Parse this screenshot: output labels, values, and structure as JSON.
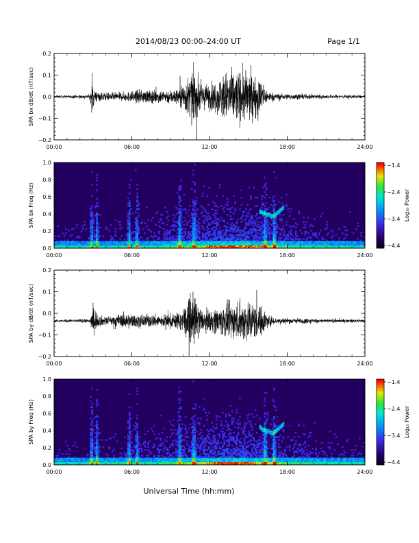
{
  "header": {
    "title": "2014/08/23  00:00–24:00 UT",
    "page": "Page 1/1"
  },
  "xlabel": "Universal Time (hh:mm)",
  "chart_data": [
    {
      "type": "line",
      "ylabel": "SPA bx dB/dt (nT/sec)",
      "xlim": [
        0,
        24
      ],
      "ylim": [
        -0.2,
        0.2
      ],
      "yticks": [
        "0.2",
        "0.1",
        "0.0",
        "−0.1",
        "−0.2"
      ],
      "xticks": [
        "00:00",
        "06:00",
        "12:00",
        "18:00",
        "24:00"
      ],
      "envelope": {
        "hours": [
          0,
          2.8,
          2.95,
          3.1,
          3.3,
          4,
          5.5,
          6.5,
          8,
          9.5,
          10.8,
          11.5,
          12.5,
          13.3,
          14,
          15,
          16,
          16.5,
          17,
          19,
          21,
          24
        ],
        "amplitude": [
          0.01,
          0.015,
          0.15,
          0.08,
          0.04,
          0.03,
          0.035,
          0.05,
          0.05,
          0.06,
          0.2,
          0.09,
          0.12,
          0.2,
          0.2,
          0.2,
          0.13,
          0.04,
          0.025,
          0.02,
          0.015,
          0.012
        ]
      }
    },
    {
      "type": "heatmap",
      "ylabel": "SPA bx Freq (Hz)",
      "xlim": [
        0,
        24
      ],
      "ylim": [
        0,
        1.0
      ],
      "yticks": [
        "1.0",
        "0.8",
        "0.6",
        "0.4",
        "0.2",
        "0.0"
      ],
      "xticks": [
        "00:00",
        "06:00",
        "12:00",
        "18:00",
        "24:00"
      ],
      "colorbar": {
        "label": "Log₁₀ Power",
        "ticks": [
          "−1.4",
          "−2.4",
          "−3.4",
          "−4.4"
        ],
        "range": [
          -4.4,
          -1.4
        ]
      },
      "bright_times_hours": [
        2.9,
        3.3,
        5.8,
        6.4,
        9.7,
        10.8,
        16.3,
        17.0
      ],
      "emission_track": {
        "hours": [
          15.8,
          16.3,
          16.9,
          17.4,
          17.8
        ],
        "freq_hz": [
          0.43,
          0.4,
          0.37,
          0.43,
          0.48
        ]
      }
    },
    {
      "type": "line",
      "ylabel": "SPA by dB/dt (nT/sec)",
      "xlim": [
        0,
        24
      ],
      "ylim": [
        -0.2,
        0.2
      ],
      "yticks": [
        "0.2",
        "0.1",
        "0.0",
        "−0.1",
        "−0.2"
      ],
      "xticks": [
        "00:00",
        "06:00",
        "12:00",
        "18:00",
        "24:00"
      ],
      "envelope": {
        "hours": [
          0,
          2.8,
          2.95,
          3.1,
          3.3,
          4,
          5.5,
          6.5,
          8,
          9.5,
          10.8,
          11.5,
          12.5,
          13.3,
          14,
          15,
          16,
          16.5,
          17,
          19,
          21,
          24
        ],
        "amplitude": [
          0.01,
          0.015,
          0.17,
          0.09,
          0.05,
          0.03,
          0.06,
          0.05,
          0.05,
          0.06,
          0.2,
          0.07,
          0.1,
          0.13,
          0.14,
          0.17,
          0.12,
          0.05,
          0.025,
          0.02,
          0.015,
          0.012
        ]
      }
    },
    {
      "type": "heatmap",
      "ylabel": "SPA by Freq (Hz)",
      "xlim": [
        0,
        24
      ],
      "ylim": [
        0,
        1.0
      ],
      "yticks": [
        "1.0",
        "0.8",
        "0.6",
        "0.4",
        "0.2",
        "0.0"
      ],
      "xticks": [
        "00:00",
        "06:00",
        "12:00",
        "18:00",
        "24:00"
      ],
      "colorbar": {
        "label": "Log₁₀ Power",
        "ticks": [
          "−1.4",
          "−2.4",
          "−3.4",
          "−4.4"
        ],
        "range": [
          -4.4,
          -1.4
        ]
      },
      "bright_times_hours": [
        2.9,
        3.3,
        5.8,
        6.4,
        9.7,
        10.8,
        16.3,
        17.0
      ],
      "emission_track": {
        "hours": [
          15.8,
          16.3,
          16.9,
          17.4,
          17.8
        ],
        "freq_hz": [
          0.45,
          0.4,
          0.37,
          0.43,
          0.48
        ]
      }
    }
  ]
}
